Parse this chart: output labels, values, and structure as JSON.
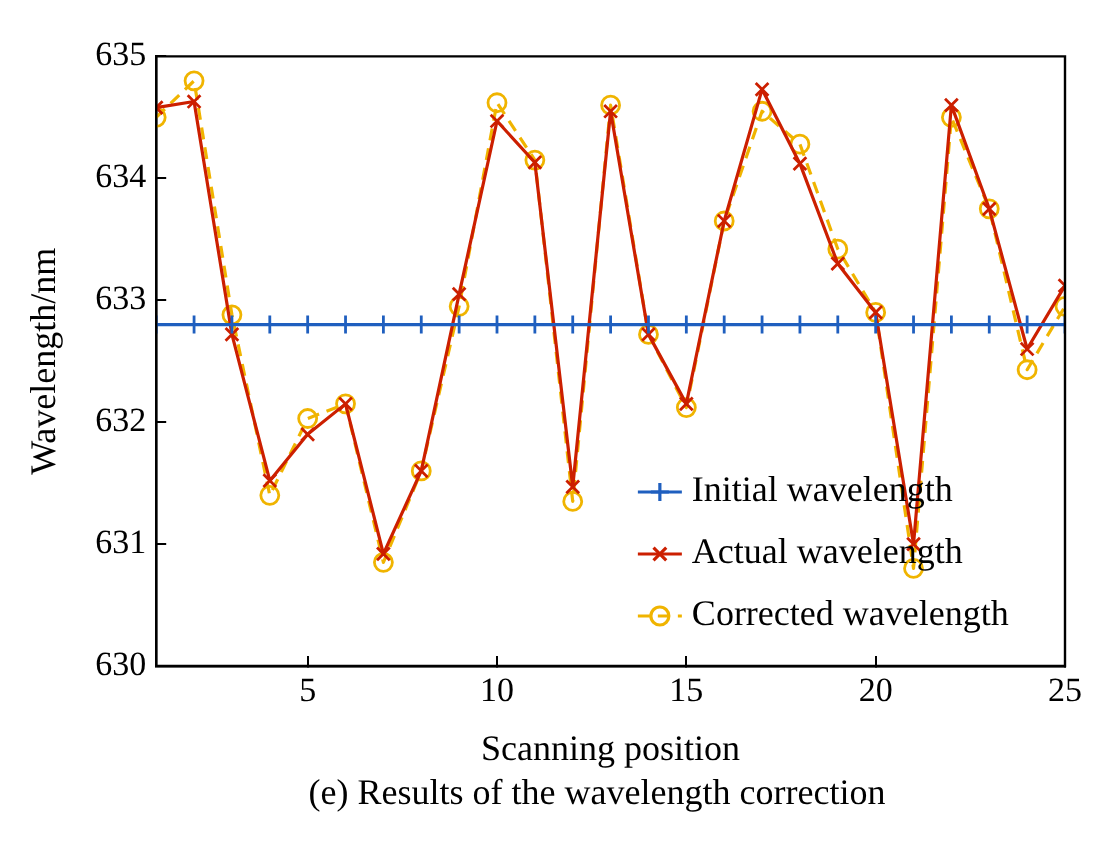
{
  "chart_data": {
    "type": "line",
    "xlabel": "Scanning position",
    "ylabel": "Wavelength/nm",
    "x": [
      1,
      2,
      3,
      4,
      5,
      6,
      7,
      8,
      9,
      10,
      11,
      12,
      13,
      14,
      15,
      16,
      17,
      18,
      19,
      20,
      21,
      22,
      23,
      24,
      25
    ],
    "series": [
      {
        "name": "Initial wavelength",
        "color": "#1f5fbf",
        "marker": "cross",
        "line_style": "solid",
        "values": [
          632.8,
          632.8,
          632.8,
          632.8,
          632.8,
          632.8,
          632.8,
          632.8,
          632.8,
          632.8,
          632.8,
          632.8,
          632.8,
          632.8,
          632.8,
          632.8,
          632.8,
          632.8,
          632.8,
          632.8,
          632.8,
          632.8,
          632.8,
          632.8,
          632.8
        ]
      },
      {
        "name": "Actual wavelength",
        "color": "#cc1f00",
        "marker": "x",
        "line_style": "solid",
        "values": [
          634.58,
          634.63,
          632.72,
          631.52,
          631.9,
          632.15,
          630.92,
          631.6,
          633.05,
          634.47,
          634.13,
          631.47,
          634.55,
          632.72,
          632.15,
          633.65,
          634.73,
          634.12,
          633.3,
          632.9,
          631.0,
          634.6,
          633.75,
          632.6,
          633.12
        ]
      },
      {
        "name": "Corrected wavelength",
        "color": "#f0b400",
        "marker": "circle",
        "line_style": "dashed",
        "values": [
          634.5,
          634.8,
          632.88,
          631.4,
          632.03,
          632.15,
          630.85,
          631.6,
          632.95,
          634.62,
          634.15,
          631.35,
          634.6,
          632.72,
          632.12,
          633.65,
          634.55,
          634.28,
          633.42,
          632.9,
          630.8,
          634.5,
          633.75,
          632.43,
          632.95
        ]
      }
    ],
    "xlim": [
      1,
      25
    ],
    "xticks": [
      5,
      10,
      15,
      20,
      25
    ],
    "ylim": [
      630,
      635
    ],
    "yticks": [
      630,
      631,
      632,
      633,
      634,
      635
    ],
    "grid": false,
    "legend": "bottom right",
    "annotations": [
      "(e) Results of the wavelength correction"
    ]
  }
}
